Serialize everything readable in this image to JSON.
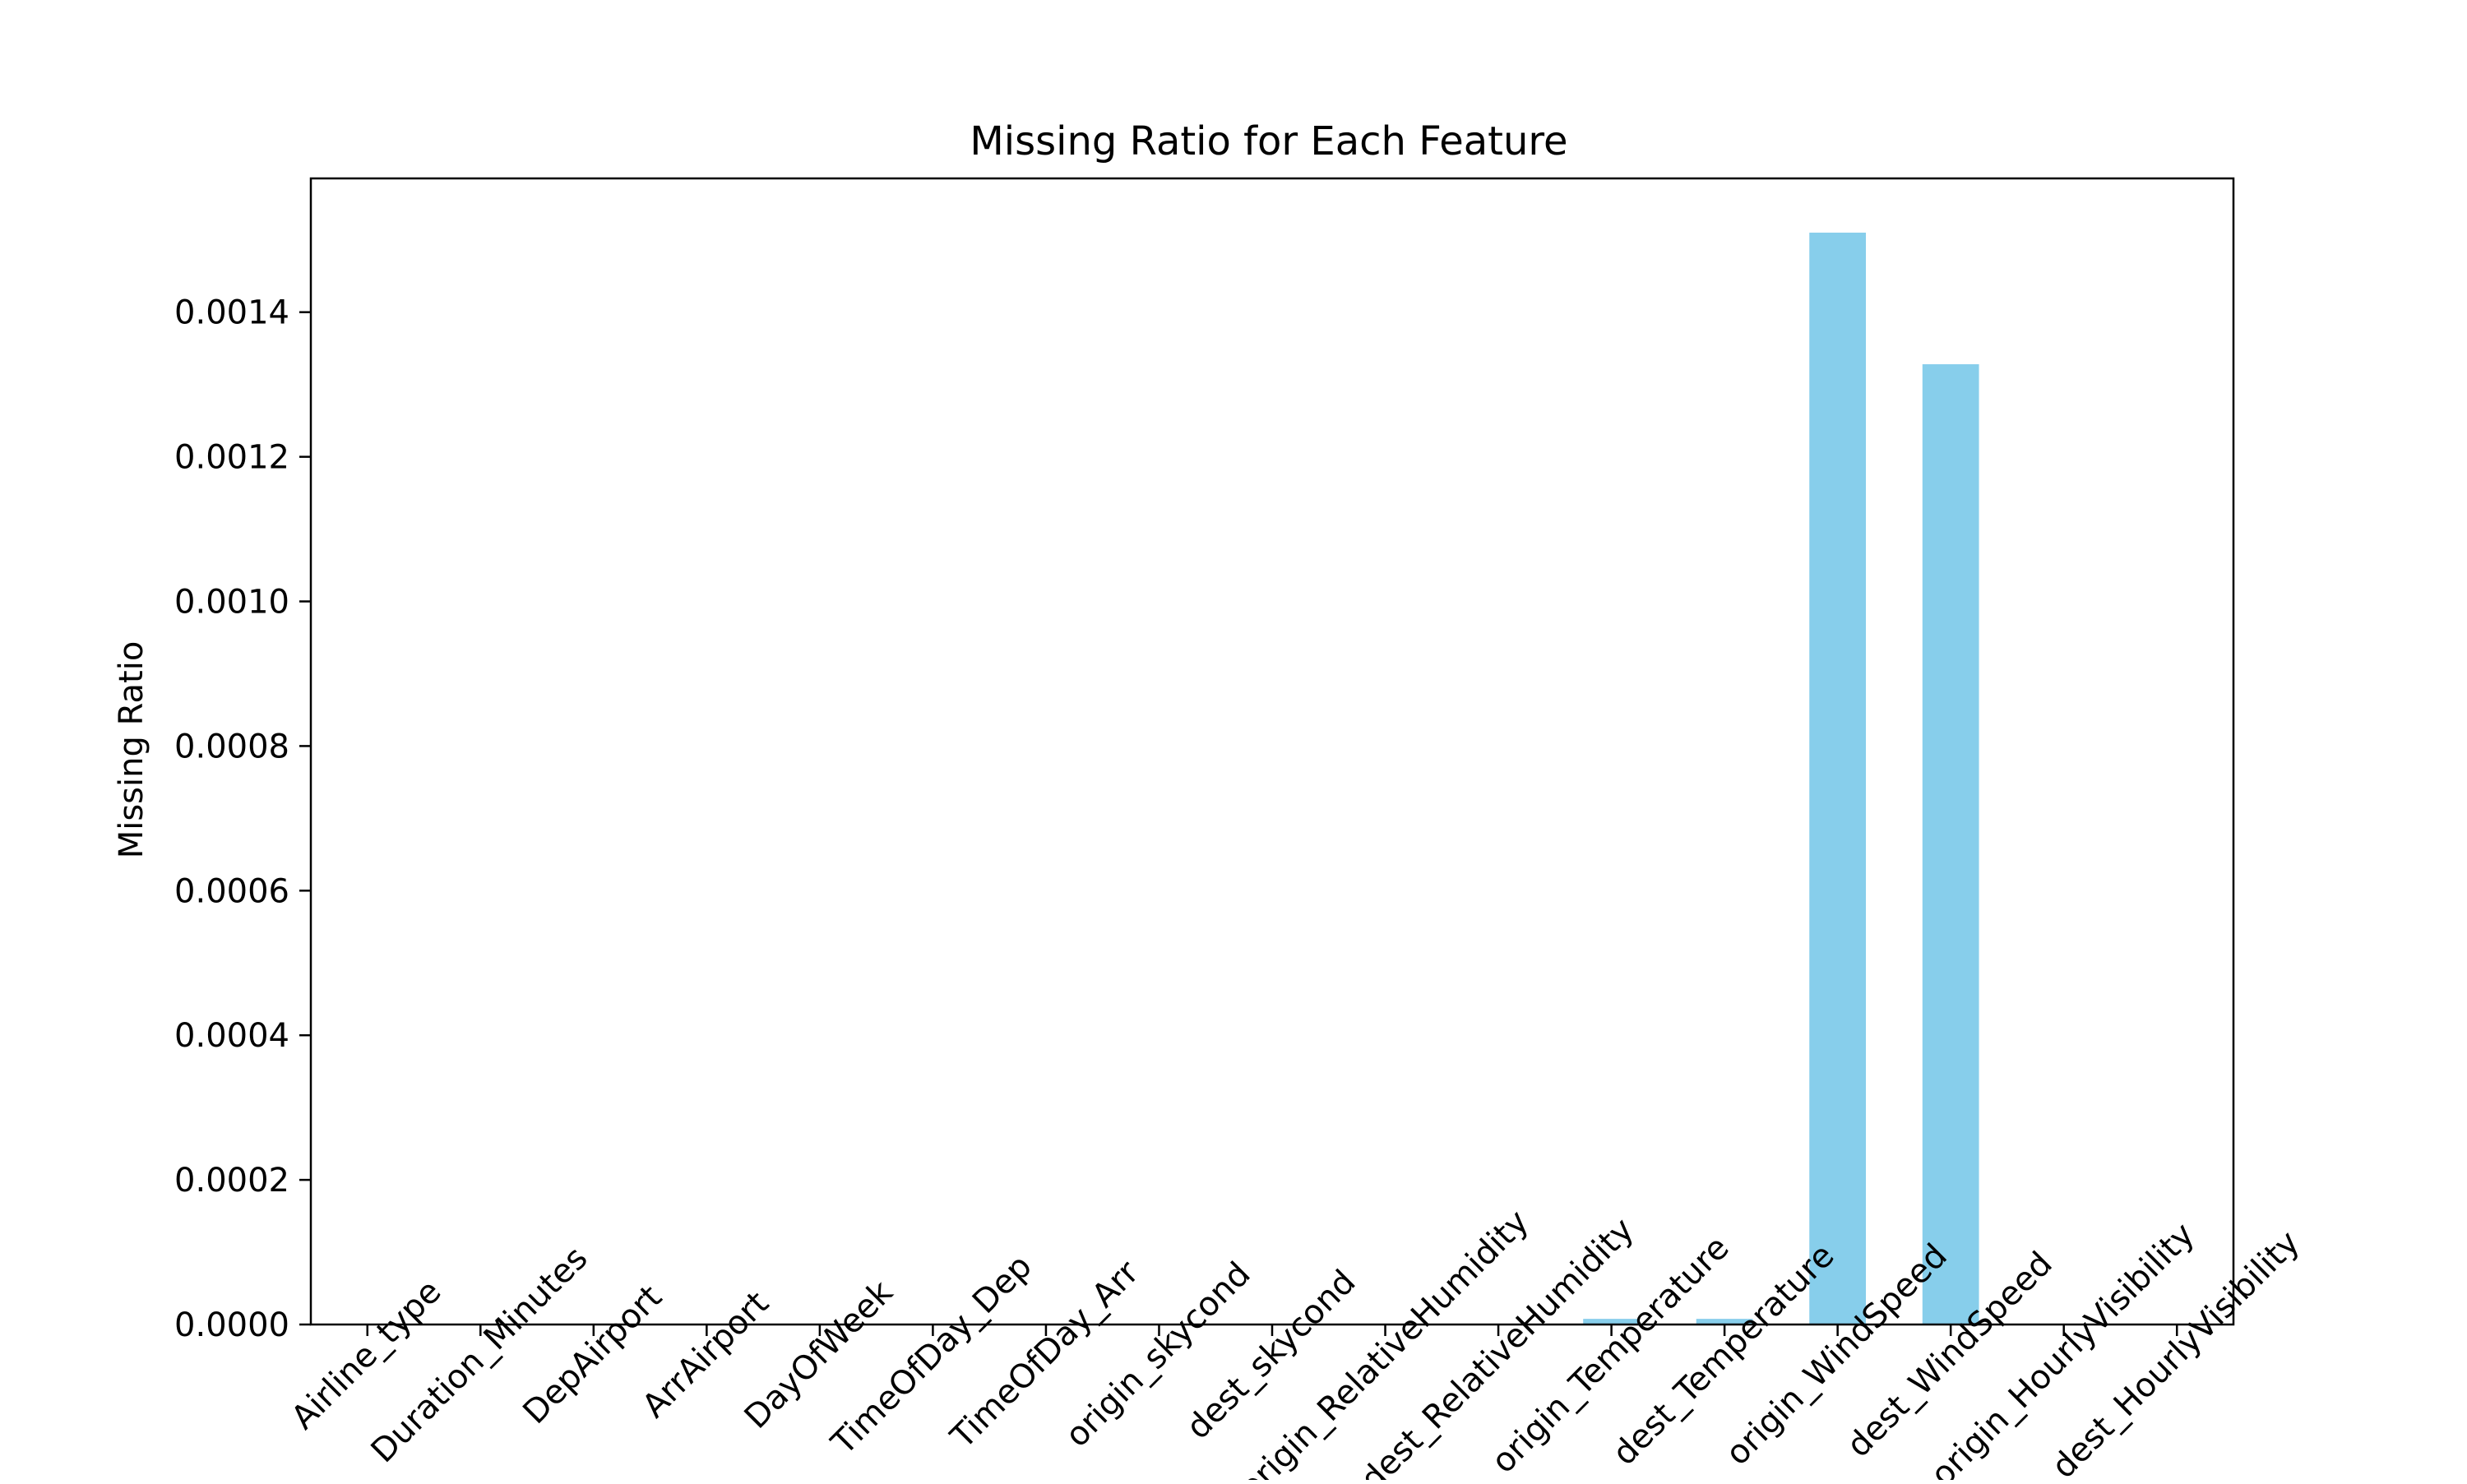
{
  "chart_data": {
    "type": "bar",
    "title": "Missing Ratio for Each Feature",
    "xlabel": "",
    "ylabel": "Missing Ratio",
    "categories": [
      "Airline_type",
      "Duration_Minutes",
      "DepAirport",
      "ArrAirport",
      "DayOfWeek",
      "TimeOfDay_Dep",
      "TimeOfDay_Arr",
      "origin_skycond",
      "dest_skycond",
      "origin_RelativeHumidity",
      "dest_RelativeHumidity",
      "origin_Temperature",
      "dest_Temperature",
      "origin_WindSpeed",
      "dest_WindSpeed",
      "origin_HourlyVisibility",
      "dest_HourlyVisibility"
    ],
    "values": [
      0,
      0,
      0,
      0,
      0,
      0,
      0,
      0,
      0,
      0,
      0,
      7.8e-06,
      7.8e-06,
      0.00151,
      0.001328,
      0,
      0
    ],
    "ylim": [
      0,
      0.001585
    ],
    "yticks": [
      0.0,
      0.0002,
      0.0004,
      0.0006,
      0.0008,
      0.001,
      0.0012,
      0.0014
    ],
    "ytick_labels": [
      "0.0000",
      "0.0002",
      "0.0004",
      "0.0006",
      "0.0008",
      "0.0010",
      "0.0012",
      "0.0014"
    ],
    "bar_color": "#87ceeb",
    "grid": false,
    "legend": "none"
  }
}
